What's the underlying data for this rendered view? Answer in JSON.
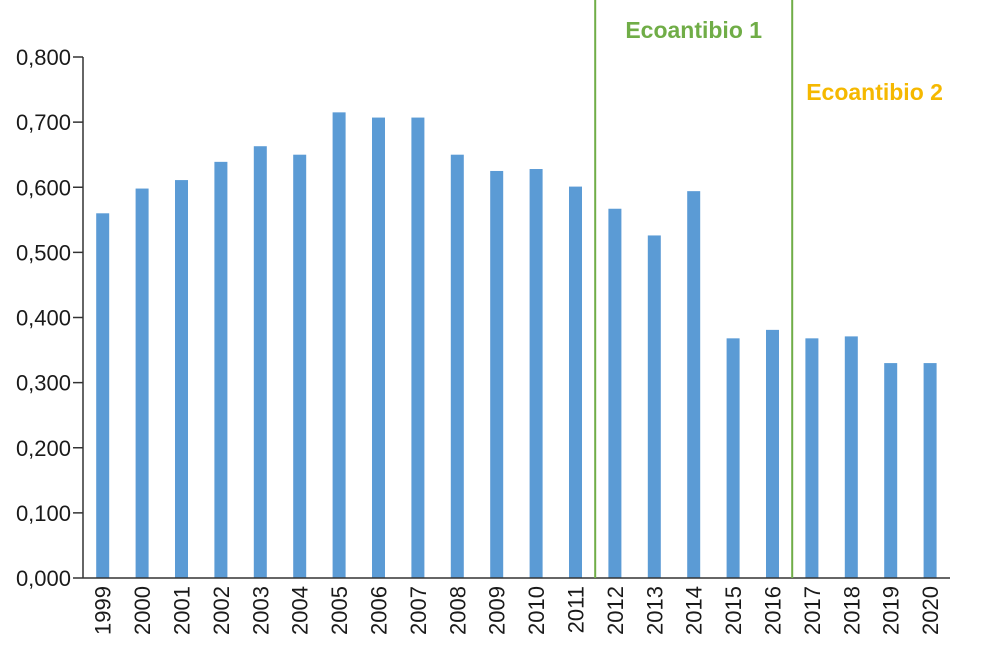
{
  "chart_data": {
    "type": "bar",
    "categories": [
      "1999",
      "2000",
      "2001",
      "2002",
      "2003",
      "2004",
      "2005",
      "2006",
      "2007",
      "2008",
      "2009",
      "2010",
      "2011",
      "2012",
      "2013",
      "2014",
      "2015",
      "2016",
      "2017",
      "2018",
      "2019",
      "2020"
    ],
    "values": [
      0.56,
      0.598,
      0.611,
      0.639,
      0.663,
      0.65,
      0.715,
      0.707,
      0.707,
      0.65,
      0.625,
      0.628,
      0.601,
      0.567,
      0.526,
      0.594,
      0.368,
      0.381,
      0.368,
      0.371,
      0.33,
      0.33
    ],
    "ylim": [
      0,
      0.8
    ],
    "yticks": [
      0,
      0.1,
      0.2,
      0.3,
      0.4,
      0.5,
      0.6,
      0.7,
      0.8
    ],
    "ytick_labels": [
      "0,000",
      "0,100",
      "0,200",
      "0,300",
      "0,400",
      "0,500",
      "0,600",
      "0,700",
      "0,800"
    ],
    "bar_color": "#5b9bd5",
    "title": "",
    "xlabel": "",
    "ylabel": "",
    "grid": false,
    "annotations": [
      {
        "text": "Ecoantibio 1",
        "color": "#70ad47",
        "from": "2011",
        "to": "2016"
      },
      {
        "text": "Ecoantibio 2",
        "color": "#f5b800",
        "from": "2016"
      }
    ],
    "divider_color": "#70ad47"
  }
}
